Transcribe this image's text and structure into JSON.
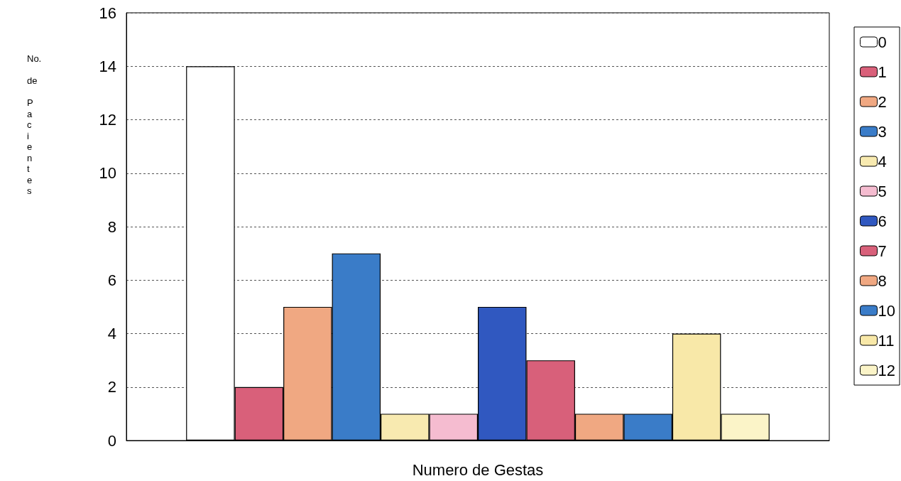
{
  "chart_data": {
    "type": "bar",
    "xlabel": "Numero de Gestas",
    "ylabel": "No. de Pacientes",
    "categories": [
      null
    ],
    "series": [
      {
        "name": "0",
        "color": "#ffffff",
        "values": [
          14
        ]
      },
      {
        "name": "1",
        "color": "#d9607a",
        "values": [
          2
        ]
      },
      {
        "name": "2",
        "color": "#f0a882",
        "values": [
          5
        ]
      },
      {
        "name": "3",
        "color": "#3a7cc8",
        "values": [
          7
        ]
      },
      {
        "name": "4",
        "color": "#f8eab0",
        "values": [
          1
        ]
      },
      {
        "name": "5",
        "color": "#f5bcd0",
        "values": [
          1
        ]
      },
      {
        "name": "6",
        "color": "#3058c0",
        "values": [
          5
        ]
      },
      {
        "name": "7",
        "color": "#d8607a",
        "values": [
          3
        ]
      },
      {
        "name": "8",
        "color": "#f0a882",
        "values": [
          1
        ]
      },
      {
        "name": "10",
        "color": "#3a7cc8",
        "values": [
          1
        ]
      },
      {
        "name": "11",
        "color": "#f8e8a8",
        "values": [
          4
        ]
      },
      {
        "name": "12",
        "color": "#fbf4c8",
        "values": [
          1
        ]
      }
    ],
    "ylim": [
      0,
      16
    ],
    "yticks": [
      0,
      2,
      4,
      6,
      8,
      10,
      12,
      14,
      16
    ],
    "grid": "y",
    "legend": "right"
  }
}
